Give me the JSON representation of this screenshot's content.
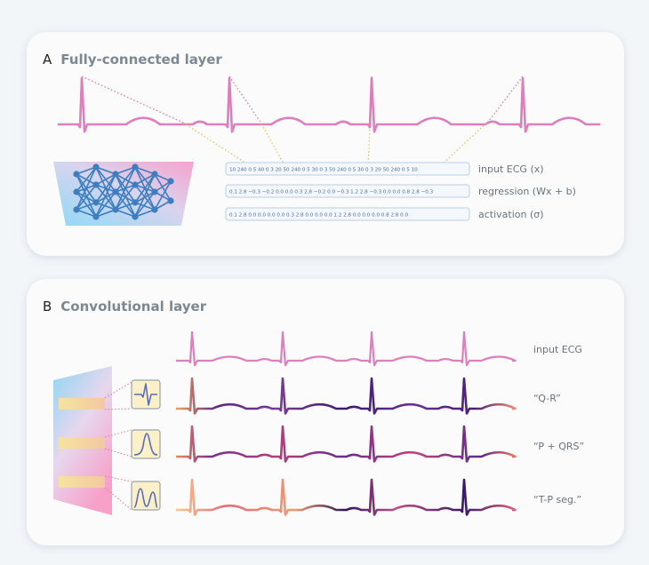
{
  "panel_a": {
    "letter": "A",
    "title": "Fully-connected layer",
    "rows": [
      {
        "values": "10  240  0  5  40  0  3  20  50  240  0  5  30  0  3  50  240  0  5  30  0  3  20  50  240  0  5  10",
        "label": "input ECG (x)"
      },
      {
        "values": "0.1  2.8  −0.3  −0.2  0.0 0.0  0.3  2.8  −0.2  0.0  −0.3  1.2  2.8  −0.3  0.0 0.0  0.8  2.8  −0.3",
        "label": "regression (Wx + b)"
      },
      {
        "values": "0.1  2.8    0.0    0.0 0.0 0.0 0.3  2.8    0.0 0.0    0.0  1.2  2.8    0.0 0.0 0.0  0.8  2.8    0.0",
        "label": "activation (σ)"
      }
    ]
  },
  "panel_b": {
    "letter": "B",
    "title": "Convolutional layer",
    "rows": [
      {
        "label": "input ECG"
      },
      {
        "label": "“Q-R”"
      },
      {
        "label": "“P + QRS”"
      },
      {
        "label": "“T-P seg.”"
      }
    ]
  },
  "colors": {
    "ecg_pink": "#dd7fbf",
    "dotted_pink": "#e2749e",
    "dotted_yellow": "#e8c25a",
    "net_blue": "#3e7ec0",
    "feature_dark": "#4a1f7a",
    "feature_orange": "#f4a05a"
  }
}
